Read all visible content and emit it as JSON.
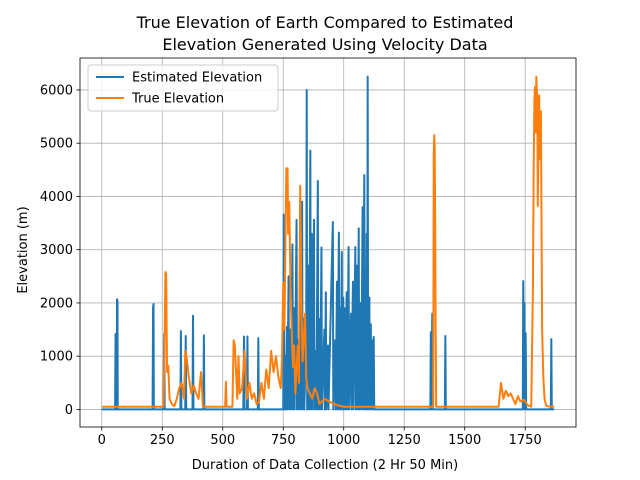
{
  "chart_data": {
    "type": "line",
    "title": [
      "True Elevation of Earth Compared to Estimated",
      "Elevation Generated Using Velocity Data"
    ],
    "xlabel": "Duration of Data Collection (2 Hr 50 Min)",
    "ylabel": "Elevation (m)",
    "xlim": [
      -90,
      1960
    ],
    "ylim": [
      -330,
      6600
    ],
    "xticks": [
      0,
      250,
      500,
      750,
      1000,
      1250,
      1500,
      1750
    ],
    "yticks": [
      0,
      1000,
      2000,
      3000,
      4000,
      5000,
      6000
    ],
    "grid": true,
    "legend_position": "top-left",
    "series": [
      {
        "name": "Estimated Elevation",
        "color": "#1f77b4",
        "points": [
          [
            0,
            0
          ],
          [
            55,
            0
          ],
          [
            57,
            1420
          ],
          [
            58,
            0
          ],
          [
            62,
            0
          ],
          [
            63,
            2070
          ],
          [
            65,
            2040
          ],
          [
            66,
            0
          ],
          [
            210,
            0
          ],
          [
            212,
            1920
          ],
          [
            214,
            1980
          ],
          [
            215,
            0
          ],
          [
            255,
            0
          ],
          [
            258,
            1420
          ],
          [
            260,
            0
          ],
          [
            325,
            0
          ],
          [
            327,
            1470
          ],
          [
            329,
            0
          ],
          [
            345,
            0
          ],
          [
            347,
            1380
          ],
          [
            349,
            0
          ],
          [
            375,
            0
          ],
          [
            377,
            1760
          ],
          [
            379,
            0
          ],
          [
            420,
            0
          ],
          [
            422,
            1390
          ],
          [
            424,
            0
          ],
          [
            585,
            0
          ],
          [
            588,
            1370
          ],
          [
            590,
            0
          ],
          [
            600,
            0
          ],
          [
            602,
            1370
          ],
          [
            604,
            0
          ],
          [
            645,
            0
          ],
          [
            647,
            1340
          ],
          [
            649,
            0
          ],
          [
            750,
            0
          ],
          [
            752,
            3660
          ],
          [
            754,
            0
          ],
          [
            758,
            1000
          ],
          [
            760,
            0
          ],
          [
            765,
            1550
          ],
          [
            767,
            0
          ],
          [
            772,
            2500
          ],
          [
            774,
            0
          ],
          [
            780,
            1500
          ],
          [
            782,
            0
          ],
          [
            788,
            3100
          ],
          [
            790,
            0
          ],
          [
            795,
            1900
          ],
          [
            797,
            0
          ],
          [
            805,
            3560
          ],
          [
            807,
            0
          ],
          [
            812,
            1300
          ],
          [
            814,
            0
          ],
          [
            820,
            2300
          ],
          [
            822,
            0
          ],
          [
            828,
            3900
          ],
          [
            830,
            0
          ],
          [
            835,
            1700
          ],
          [
            837,
            0
          ],
          [
            845,
            1400
          ],
          [
            847,
            6000
          ],
          [
            849,
            0
          ],
          [
            855,
            2700
          ],
          [
            857,
            0
          ],
          [
            862,
            4860
          ],
          [
            864,
            0
          ],
          [
            868,
            3300
          ],
          [
            870,
            0
          ],
          [
            875,
            2100
          ],
          [
            877,
            3560
          ],
          [
            879,
            0
          ],
          [
            885,
            1100
          ],
          [
            887,
            0
          ],
          [
            893,
            4290
          ],
          [
            895,
            0
          ],
          [
            900,
            1700
          ],
          [
            902,
            0
          ],
          [
            908,
            3040
          ],
          [
            910,
            0
          ],
          [
            920,
            1500
          ],
          [
            922,
            0
          ],
          [
            926,
            2200
          ],
          [
            928,
            0
          ],
          [
            935,
            1200
          ],
          [
            937,
            0
          ],
          [
            955,
            3520
          ],
          [
            957,
            0
          ],
          [
            965,
            1300
          ],
          [
            967,
            0
          ],
          [
            972,
            2400
          ],
          [
            974,
            0
          ],
          [
            980,
            3320
          ],
          [
            982,
            0
          ],
          [
            986,
            1900
          ],
          [
            988,
            0
          ],
          [
            992,
            2960
          ],
          [
            994,
            0
          ],
          [
            998,
            2100
          ],
          [
            1000,
            0
          ],
          [
            1005,
            1900
          ],
          [
            1007,
            0
          ],
          [
            1012,
            2200
          ],
          [
            1014,
            0
          ],
          [
            1020,
            3050
          ],
          [
            1022,
            0
          ],
          [
            1030,
            1800
          ],
          [
            1032,
            0
          ],
          [
            1038,
            2400
          ],
          [
            1040,
            0
          ],
          [
            1048,
            3050
          ],
          [
            1050,
            0
          ],
          [
            1055,
            2700
          ],
          [
            1057,
            0
          ],
          [
            1062,
            3400
          ],
          [
            1064,
            0
          ],
          [
            1070,
            2000
          ],
          [
            1072,
            0
          ],
          [
            1078,
            3800
          ],
          [
            1080,
            0
          ],
          [
            1085,
            4400
          ],
          [
            1087,
            0
          ],
          [
            1090,
            2100
          ],
          [
            1092,
            0
          ],
          [
            1095,
            3300
          ],
          [
            1097,
            0
          ],
          [
            1099,
            6250
          ],
          [
            1101,
            0
          ],
          [
            1106,
            2100
          ],
          [
            1108,
            0
          ],
          [
            1112,
            1600
          ],
          [
            1114,
            0
          ],
          [
            1120,
            1300
          ],
          [
            1122,
            0
          ],
          [
            1124,
            1360
          ],
          [
            1126,
            0
          ],
          [
            1358,
            0
          ],
          [
            1360,
            1450
          ],
          [
            1362,
            0
          ],
          [
            1366,
            1800
          ],
          [
            1368,
            0
          ],
          [
            1418,
            0
          ],
          [
            1420,
            1380
          ],
          [
            1422,
            0
          ],
          [
            1740,
            0
          ],
          [
            1742,
            2410
          ],
          [
            1744,
            0
          ],
          [
            1747,
            2000
          ],
          [
            1749,
            0
          ],
          [
            1752,
            1430
          ],
          [
            1754,
            0
          ],
          [
            1856,
            0
          ],
          [
            1858,
            1320
          ],
          [
            1860,
            0
          ],
          [
            1870,
            0
          ]
        ]
      },
      {
        "name": "True Elevation",
        "color": "#ff7f0e",
        "points": [
          [
            0,
            50
          ],
          [
            255,
            50
          ],
          [
            260,
            1400
          ],
          [
            263,
            2580
          ],
          [
            266,
            2550
          ],
          [
            270,
            700
          ],
          [
            275,
            820
          ],
          [
            280,
            200
          ],
          [
            290,
            100
          ],
          [
            300,
            60
          ],
          [
            310,
            200
          ],
          [
            320,
            400
          ],
          [
            330,
            500
          ],
          [
            340,
            200
          ],
          [
            345,
            1100
          ],
          [
            350,
            1000
          ],
          [
            360,
            600
          ],
          [
            370,
            300
          ],
          [
            380,
            450
          ],
          [
            390,
            300
          ],
          [
            400,
            200
          ],
          [
            410,
            700
          ],
          [
            418,
            50
          ],
          [
            510,
            50
          ],
          [
            513,
            520
          ],
          [
            516,
            50
          ],
          [
            540,
            50
          ],
          [
            545,
            1300
          ],
          [
            550,
            1200
          ],
          [
            560,
            200
          ],
          [
            565,
            1000
          ],
          [
            570,
            300
          ],
          [
            580,
            400
          ],
          [
            590,
            1100
          ],
          [
            600,
            200
          ],
          [
            610,
            500
          ],
          [
            620,
            200
          ],
          [
            630,
            300
          ],
          [
            640,
            100
          ],
          [
            650,
            150
          ],
          [
            660,
            500
          ],
          [
            670,
            200
          ],
          [
            680,
            750
          ],
          [
            690,
            400
          ],
          [
            700,
            1100
          ],
          [
            710,
            700
          ],
          [
            720,
            1000
          ],
          [
            730,
            600
          ],
          [
            740,
            400
          ],
          [
            745,
            1000
          ],
          [
            750,
            2380
          ],
          [
            755,
            1500
          ],
          [
            760,
            3500
          ],
          [
            763,
            4530
          ],
          [
            765,
            4000
          ],
          [
            768,
            4530
          ],
          [
            770,
            3300
          ],
          [
            775,
            3900
          ],
          [
            780,
            2300
          ],
          [
            785,
            1500
          ],
          [
            790,
            800
          ],
          [
            795,
            1200
          ],
          [
            800,
            300
          ],
          [
            810,
            1200
          ],
          [
            815,
            500
          ],
          [
            820,
            4200
          ],
          [
            825,
            2000
          ],
          [
            830,
            900
          ],
          [
            840,
            1800
          ],
          [
            845,
            600
          ],
          [
            850,
            400
          ],
          [
            860,
            300
          ],
          [
            870,
            200
          ],
          [
            880,
            400
          ],
          [
            890,
            300
          ],
          [
            900,
            100
          ],
          [
            920,
            200
          ],
          [
            940,
            150
          ],
          [
            960,
            100
          ],
          [
            980,
            70
          ],
          [
            1000,
            50
          ],
          [
            1100,
            50
          ],
          [
            1370,
            50
          ],
          [
            1372,
            4800
          ],
          [
            1374,
            5150
          ],
          [
            1376,
            4950
          ],
          [
            1378,
            3500
          ],
          [
            1380,
            1500
          ],
          [
            1382,
            50
          ],
          [
            1450,
            50
          ],
          [
            1640,
            50
          ],
          [
            1650,
            500
          ],
          [
            1660,
            200
          ],
          [
            1670,
            350
          ],
          [
            1680,
            250
          ],
          [
            1690,
            300
          ],
          [
            1700,
            200
          ],
          [
            1710,
            100
          ],
          [
            1720,
            250
          ],
          [
            1730,
            150
          ],
          [
            1745,
            180
          ],
          [
            1760,
            80
          ],
          [
            1775,
            50
          ],
          [
            1782,
            2300
          ],
          [
            1785,
            4500
          ],
          [
            1788,
            5800
          ],
          [
            1790,
            6050
          ],
          [
            1793,
            5200
          ],
          [
            1796,
            6250
          ],
          [
            1800,
            5800
          ],
          [
            1802,
            3820
          ],
          [
            1805,
            5000
          ],
          [
            1808,
            5900
          ],
          [
            1810,
            4700
          ],
          [
            1815,
            5600
          ],
          [
            1817,
            3900
          ],
          [
            1820,
            1500
          ],
          [
            1825,
            600
          ],
          [
            1830,
            200
          ],
          [
            1835,
            100
          ],
          [
            1840,
            60
          ],
          [
            1870,
            50
          ]
        ]
      }
    ]
  }
}
